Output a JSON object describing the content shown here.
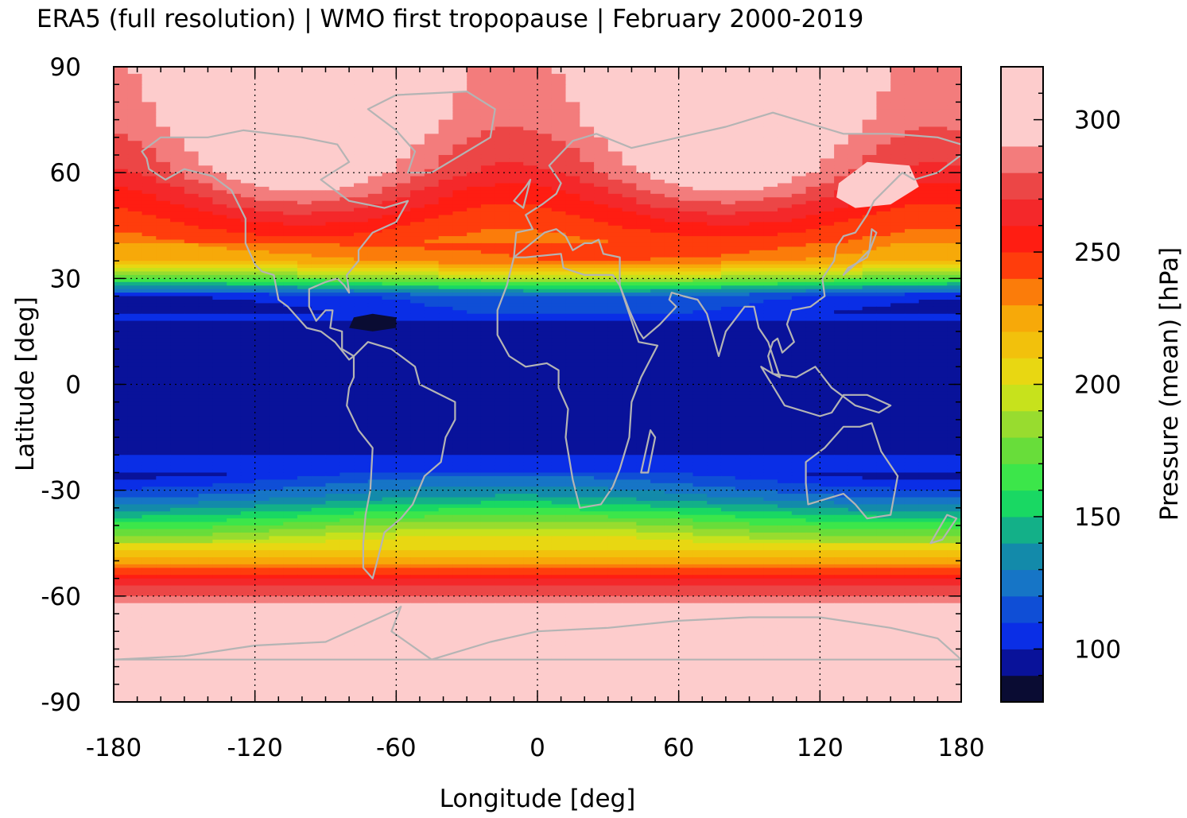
{
  "title": "ERA5 (full resolution) | WMO first tropopause | February 2000-2019",
  "chart_data": {
    "type": "heatmap",
    "projection": "equirectangular",
    "xlabel": "Longitude [deg]",
    "ylabel": "Latitude [deg]",
    "xlim": [
      -180,
      180
    ],
    "ylim": [
      -90,
      90
    ],
    "xticks": [
      "-180",
      "-120",
      "-60",
      "0",
      "60",
      "120",
      "180"
    ],
    "yticks": [
      "90",
      "60",
      "30",
      "0",
      "-30",
      "-60",
      "-90"
    ],
    "grid": true,
    "coastlines": true,
    "coastline_color": "#b4b4b4",
    "colorbar": {
      "label": "Pressure (mean) [hPa]",
      "range": [
        80,
        320
      ],
      "step": 10,
      "ticks": [
        "100",
        "150",
        "200",
        "250",
        "300"
      ],
      "colors": [
        "#0a0c33",
        "#09129a",
        "#0a2ee6",
        "#0f4ed6",
        "#1675c6",
        "#138aaa",
        "#13b088",
        "#19d863",
        "#3ce64a",
        "#68dd3a",
        "#98dc2f",
        "#c7e21c",
        "#e8d712",
        "#f2c10c",
        "#f7a909",
        "#fb7c0a",
        "#ff3d0c",
        "#ff1d12",
        "#f4282a",
        "#ec4646",
        "#f37c7c",
        "#fdcccc"
      ]
    },
    "field_profile_zonal_mean_hPa": [
      {
        "lat": 90,
        "hPa": 305
      },
      {
        "lat": 75,
        "hPa": 300
      },
      {
        "lat": 60,
        "hPa": 285
      },
      {
        "lat": 45,
        "hPa": 250
      },
      {
        "lat": 35,
        "hPa": 230
      },
      {
        "lat": 30,
        "hPa": 180
      },
      {
        "lat": 25,
        "hPa": 110
      },
      {
        "lat": 15,
        "hPa": 95
      },
      {
        "lat": 0,
        "hPa": 95
      },
      {
        "lat": -15,
        "hPa": 95
      },
      {
        "lat": -25,
        "hPa": 105
      },
      {
        "lat": -32,
        "hPa": 130
      },
      {
        "lat": -40,
        "hPa": 175
      },
      {
        "lat": -50,
        "hPa": 225
      },
      {
        "lat": -57,
        "hPa": 270
      },
      {
        "lat": -65,
        "hPa": 300
      },
      {
        "lat": -75,
        "hPa": 305
      },
      {
        "lat": -85,
        "hPa": 315
      }
    ]
  }
}
